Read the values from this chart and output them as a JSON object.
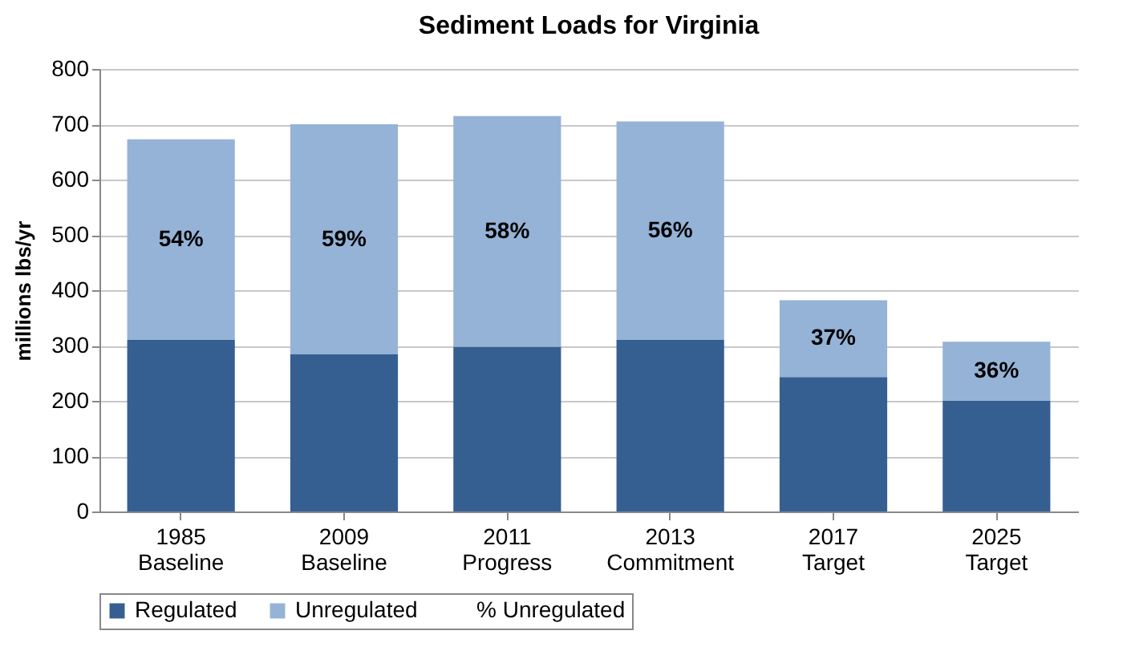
{
  "chart_data": {
    "type": "bar",
    "title": "Sediment Loads for  Virginia",
    "ylabel": "millions lbs/yr",
    "categories": [
      "1985 Baseline",
      "2009 Baseline",
      "2011 Progress",
      "2013 Commitment",
      "2017 Target",
      "2025 Target"
    ],
    "stacked": true,
    "ylim": [
      0,
      800
    ],
    "yticks": [
      0,
      100,
      200,
      300,
      400,
      500,
      600,
      700,
      800
    ],
    "grid": "y",
    "legend": "bottom",
    "series": [
      {
        "name": "Regulated",
        "color": "#365f91",
        "values": [
          310,
          284,
          298,
          310,
          243,
          200
        ]
      },
      {
        "name": "Unregulated",
        "color": "#95b3d7",
        "values": [
          363,
          416,
          417,
          395,
          139,
          107
        ]
      }
    ],
    "annotations": [
      "% Unregulated",
      "54%",
      "59%",
      "58%",
      "56%",
      "37%",
      "36%"
    ]
  }
}
